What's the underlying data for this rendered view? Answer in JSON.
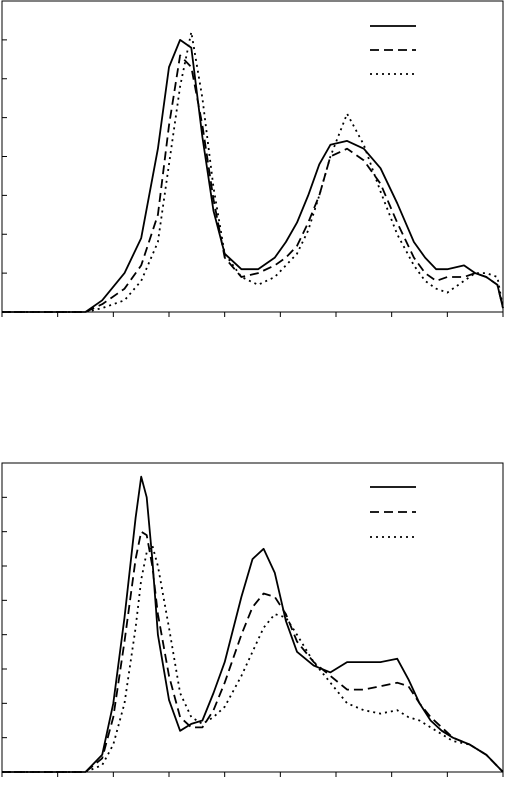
{
  "chart_data": [
    {
      "type": "line",
      "title": "",
      "xlabel": "",
      "ylabel": "",
      "xlim": [
        0,
        9
      ],
      "ylim": [
        0,
        8
      ],
      "x_ticks": [
        0,
        1,
        2,
        3,
        4,
        5,
        6,
        7,
        8,
        9
      ],
      "y_ticks": [
        0,
        1,
        2,
        3,
        4,
        5,
        6,
        7,
        8
      ],
      "grid": false,
      "legend": {
        "placement": "top-right",
        "entries": [
          "solid",
          "dashed",
          "dotted"
        ]
      },
      "series": [
        {
          "style": "solid",
          "x": [
            0,
            1.2,
            1.5,
            1.8,
            2.2,
            2.5,
            2.8,
            3.0,
            3.2,
            3.4,
            3.6,
            3.8,
            4.0,
            4.3,
            4.6,
            4.9,
            5.1,
            5.3,
            5.5,
            5.7,
            5.9,
            6.2,
            6.5,
            6.8,
            7.1,
            7.4,
            7.6,
            7.8,
            8.0,
            8.3,
            8.5,
            8.7,
            8.9,
            9.0
          ],
          "y": [
            0,
            0,
            0,
            0.3,
            1.0,
            1.9,
            4.2,
            6.3,
            7.0,
            6.8,
            4.5,
            2.6,
            1.5,
            1.1,
            1.1,
            1.4,
            1.8,
            2.3,
            3.0,
            3.8,
            4.3,
            4.4,
            4.2,
            3.7,
            2.8,
            1.8,
            1.4,
            1.1,
            1.1,
            1.2,
            1.0,
            0.9,
            0.7,
            0.1
          ]
        },
        {
          "style": "dashed",
          "x": [
            0,
            1.2,
            1.5,
            1.8,
            2.2,
            2.5,
            2.8,
            3.0,
            3.2,
            3.4,
            3.6,
            3.8,
            4.0,
            4.3,
            4.6,
            4.9,
            5.1,
            5.3,
            5.5,
            5.7,
            5.9,
            6.2,
            6.5,
            6.8,
            7.1,
            7.4,
            7.6,
            7.8,
            8.0,
            8.3,
            8.5,
            8.7,
            8.9,
            9.0
          ],
          "y": [
            0,
            0,
            0,
            0.2,
            0.6,
            1.2,
            2.5,
            4.8,
            6.6,
            6.3,
            4.8,
            2.9,
            1.4,
            0.9,
            1.0,
            1.2,
            1.4,
            1.7,
            2.3,
            3.0,
            4.0,
            4.2,
            3.9,
            3.3,
            2.3,
            1.4,
            1.0,
            0.8,
            0.9,
            0.9,
            1.0,
            0.9,
            0.7,
            0.1
          ]
        },
        {
          "style": "dotted",
          "x": [
            0,
            1.2,
            1.5,
            1.8,
            2.2,
            2.5,
            2.8,
            3.0,
            3.2,
            3.4,
            3.6,
            3.8,
            4.0,
            4.3,
            4.6,
            4.9,
            5.1,
            5.3,
            5.5,
            5.7,
            5.9,
            6.2,
            6.5,
            6.8,
            7.1,
            7.4,
            7.6,
            7.8,
            8.0,
            8.3,
            8.5,
            8.7,
            8.9,
            9.0
          ],
          "y": [
            0,
            0,
            0,
            0.1,
            0.3,
            0.8,
            1.8,
            3.8,
            5.8,
            7.2,
            5.5,
            3.2,
            1.5,
            0.9,
            0.7,
            0.9,
            1.2,
            1.5,
            2.1,
            3.0,
            4.0,
            5.1,
            4.3,
            3.1,
            2.0,
            1.2,
            0.8,
            0.6,
            0.5,
            0.8,
            1.0,
            1.0,
            0.9,
            0.1
          ]
        }
      ]
    },
    {
      "type": "line",
      "title": "",
      "xlabel": "",
      "ylabel": "",
      "xlim": [
        0,
        9
      ],
      "ylim": [
        0,
        9
      ],
      "x_ticks": [
        0,
        1,
        2,
        3,
        4,
        5,
        6,
        7,
        8,
        9
      ],
      "y_ticks": [
        0,
        1,
        2,
        3,
        4,
        5,
        6,
        7,
        8,
        9
      ],
      "grid": false,
      "legend": {
        "placement": "top-right",
        "entries": [
          "solid",
          "dashed",
          "dotted"
        ]
      },
      "series": [
        {
          "style": "solid",
          "x": [
            0,
            1.2,
            1.5,
            1.8,
            2.0,
            2.2,
            2.4,
            2.5,
            2.6,
            2.7,
            2.8,
            3.0,
            3.2,
            3.4,
            3.6,
            3.8,
            4.0,
            4.3,
            4.5,
            4.7,
            4.9,
            5.1,
            5.3,
            5.6,
            5.9,
            6.2,
            6.5,
            6.8,
            7.1,
            7.3,
            7.5,
            7.7,
            7.9,
            8.1,
            8.4,
            8.7,
            9.0
          ],
          "y": [
            0,
            0,
            0,
            0.5,
            2.0,
            4.5,
            7.4,
            8.6,
            8.0,
            6.2,
            4.0,
            2.1,
            1.2,
            1.4,
            1.5,
            2.3,
            3.2,
            5.1,
            6.2,
            6.5,
            5.8,
            4.4,
            3.5,
            3.1,
            2.9,
            3.2,
            3.2,
            3.2,
            3.3,
            2.7,
            2.0,
            1.5,
            1.2,
            1.0,
            0.8,
            0.5,
            0.0
          ]
        },
        {
          "style": "dashed",
          "x": [
            0,
            1.2,
            1.5,
            1.8,
            2.0,
            2.2,
            2.4,
            2.5,
            2.6,
            2.7,
            2.8,
            3.0,
            3.2,
            3.4,
            3.6,
            3.8,
            4.0,
            4.3,
            4.5,
            4.7,
            4.9,
            5.1,
            5.3,
            5.6,
            5.9,
            6.2,
            6.5,
            6.8,
            7.1,
            7.3,
            7.5,
            7.7,
            7.9,
            8.1,
            8.4,
            8.7,
            9.0
          ],
          "y": [
            0,
            0,
            0,
            0.4,
            1.6,
            3.8,
            6.2,
            7.0,
            6.9,
            6.0,
            4.6,
            2.8,
            1.6,
            1.3,
            1.3,
            1.8,
            2.6,
            4.0,
            4.8,
            5.2,
            5.1,
            4.6,
            3.8,
            3.2,
            2.8,
            2.4,
            2.4,
            2.5,
            2.6,
            2.5,
            2.0,
            1.6,
            1.3,
            1.0,
            0.8,
            0.5,
            0.0
          ]
        },
        {
          "style": "dotted",
          "x": [
            0,
            1.2,
            1.5,
            1.8,
            2.0,
            2.2,
            2.4,
            2.5,
            2.6,
            2.7,
            2.8,
            3.0,
            3.2,
            3.4,
            3.6,
            3.8,
            4.0,
            4.3,
            4.5,
            4.7,
            4.9,
            5.1,
            5.3,
            5.6,
            5.9,
            6.2,
            6.5,
            6.8,
            7.1,
            7.3,
            7.5,
            7.7,
            7.9,
            8.1,
            8.4,
            8.7,
            9.0
          ],
          "y": [
            0,
            0,
            0,
            0.2,
            0.8,
            2.0,
            4.2,
            5.6,
            6.4,
            6.6,
            6.0,
            4.2,
            2.3,
            1.6,
            1.4,
            1.6,
            1.9,
            2.8,
            3.5,
            4.2,
            4.6,
            4.5,
            4.0,
            3.2,
            2.6,
            2.0,
            1.8,
            1.7,
            1.8,
            1.6,
            1.5,
            1.3,
            1.1,
            0.9,
            0.8,
            0.5,
            0.0
          ]
        }
      ]
    }
  ]
}
